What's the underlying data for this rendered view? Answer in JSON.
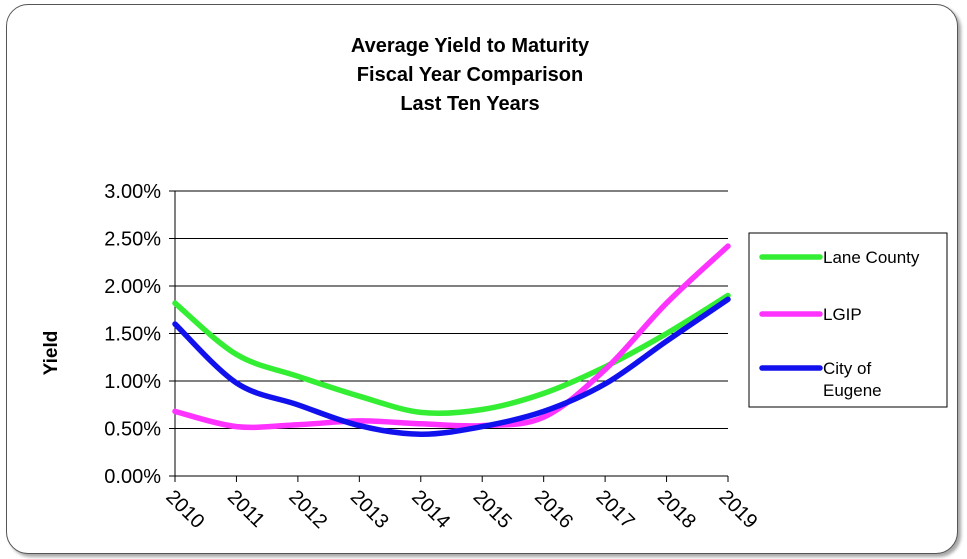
{
  "chart_data": {
    "type": "line",
    "title": [
      "Average Yield to Maturity",
      "Fiscal Year Comparison",
      "Last Ten Years"
    ],
    "ylabel": "Yield",
    "xlabel": "",
    "categories": [
      "2010",
      "2011",
      "2012",
      "2013",
      "2014",
      "2015",
      "2016",
      "2017",
      "2018",
      "2019"
    ],
    "y_ticks": [
      "0.00%",
      "0.50%",
      "1.00%",
      "1.50%",
      "2.00%",
      "2.50%",
      "3.00%"
    ],
    "ylim": [
      0,
      3
    ],
    "grid": true,
    "legend_position": "right",
    "series": [
      {
        "name": "Lane County",
        "color": "#33ee33",
        "values": [
          1.82,
          1.28,
          1.05,
          0.84,
          0.67,
          0.7,
          0.87,
          1.15,
          1.5,
          1.9
        ]
      },
      {
        "name": "LGIP",
        "color": "#ff33ff",
        "values": [
          0.68,
          0.52,
          0.54,
          0.58,
          0.55,
          0.53,
          0.62,
          1.12,
          1.82,
          2.42
        ]
      },
      {
        "name": "City of Eugene",
        "color": "#1111ee",
        "values": [
          1.6,
          0.98,
          0.75,
          0.53,
          0.44,
          0.52,
          0.68,
          0.97,
          1.42,
          1.86
        ]
      }
    ]
  }
}
